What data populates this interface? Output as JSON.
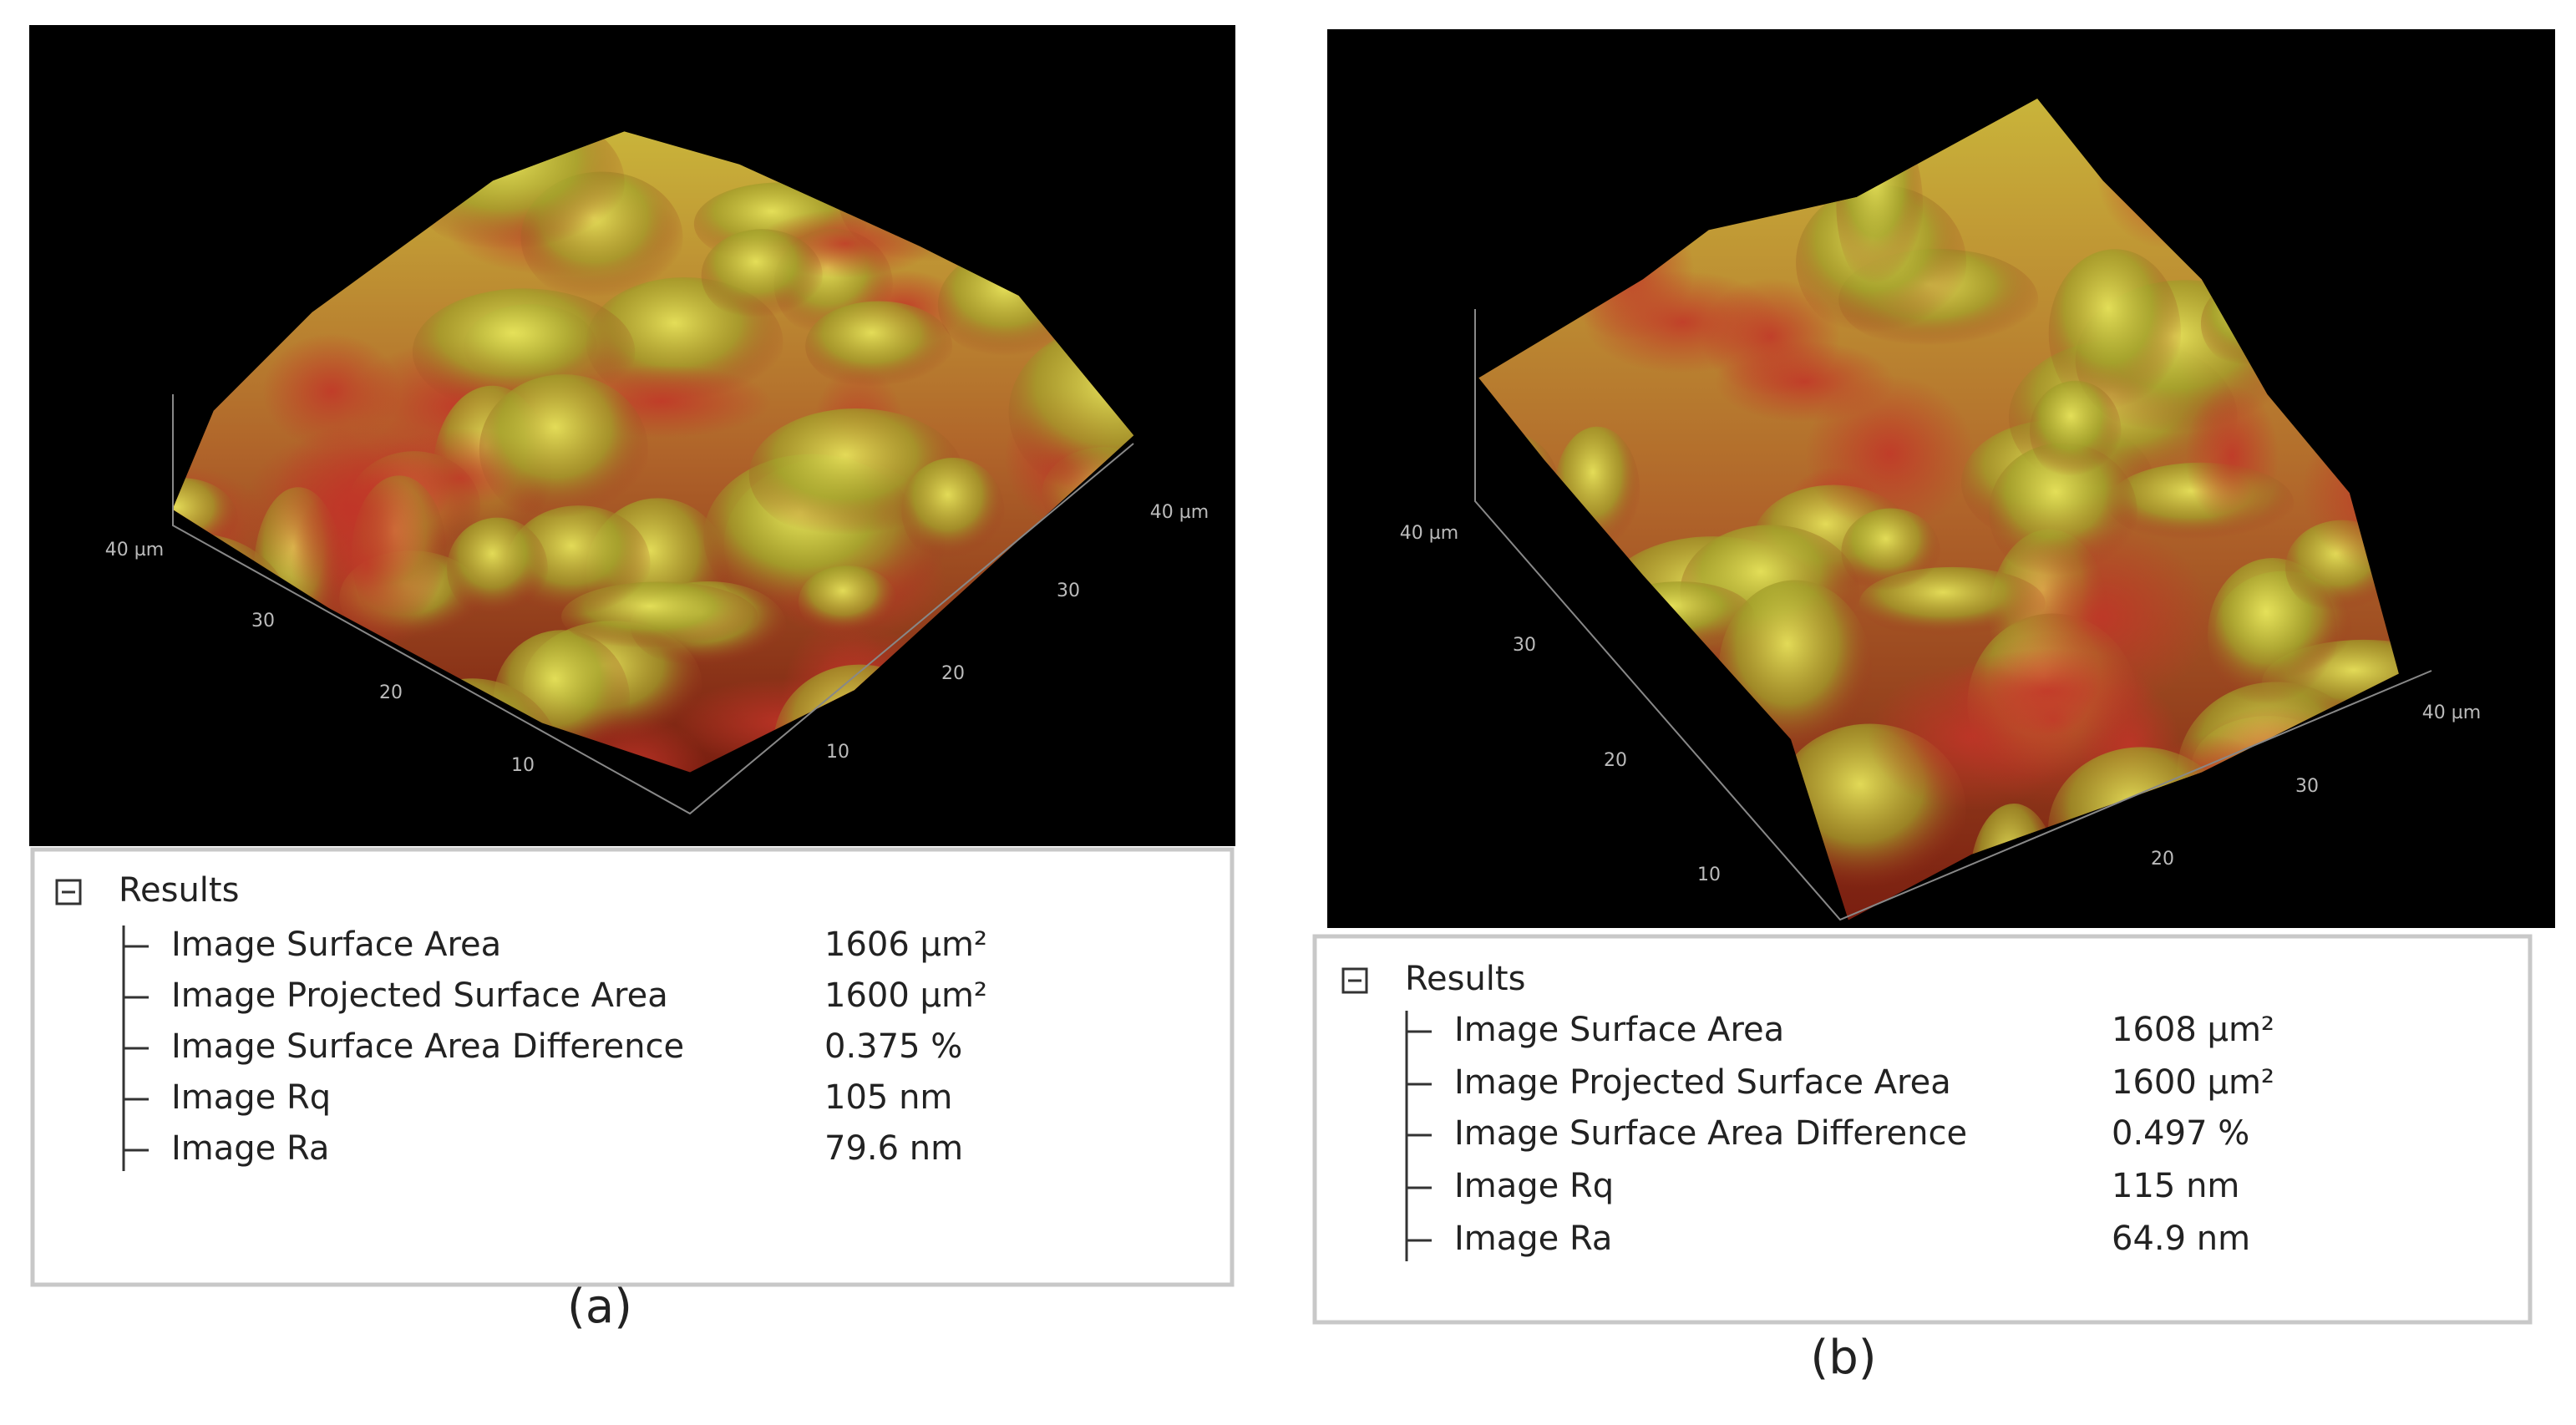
{
  "panels": [
    {
      "axis_labels": {
        "left": [
          "40 µm",
          "30",
          "20",
          "10"
        ],
        "right": [
          "10",
          "20",
          "30",
          "40 µm"
        ]
      },
      "results": {
        "title": "Results",
        "rows": [
          {
            "label": "Image Surface Area",
            "value": "1606 µm²"
          },
          {
            "label": "Image Projected Surface Area",
            "value": "1600 µm²"
          },
          {
            "label": "Image Surface Area Difference",
            "value": "0.375 %"
          },
          {
            "label": "Image Rq",
            "value": "105 nm"
          },
          {
            "label": "Image Ra",
            "value": "79.6 nm"
          }
        ]
      },
      "caption": "(a)"
    },
    {
      "axis_labels": {
        "left": [
          "40 µm",
          "30",
          "20",
          "10"
        ],
        "right": [
          "20",
          "30",
          "40 µm"
        ]
      },
      "results": {
        "title": "Results",
        "rows": [
          {
            "label": "Image Surface Area",
            "value": "1608 µm²"
          },
          {
            "label": "Image Projected Surface Area",
            "value": "1600 µm²"
          },
          {
            "label": "Image Surface Area Difference",
            "value": "0.497 %"
          },
          {
            "label": "Image Rq",
            "value": "115 nm"
          },
          {
            "label": "Image Ra",
            "value": "64.9 nm"
          }
        ]
      },
      "caption": "(b)"
    }
  ]
}
